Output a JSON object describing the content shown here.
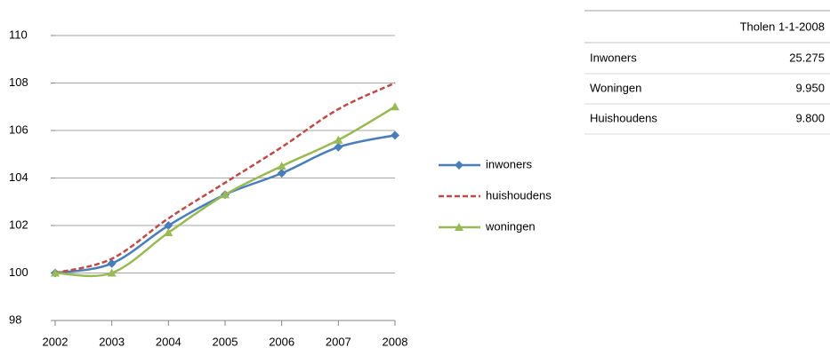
{
  "chart_data": {
    "type": "line",
    "categories": [
      "2002",
      "2003",
      "2004",
      "2005",
      "2006",
      "2007",
      "2008"
    ],
    "series": [
      {
        "name": "inwoners",
        "color": "#4a7ebb",
        "marker": "diamond",
        "dash": false,
        "values": [
          100,
          100.4,
          102.0,
          103.3,
          104.2,
          105.3,
          105.8
        ]
      },
      {
        "name": "huishoudens",
        "color": "#be4b48",
        "marker": "none",
        "dash": true,
        "values": [
          100,
          100.6,
          102.3,
          103.8,
          105.3,
          106.9,
          108.0
        ]
      },
      {
        "name": "woningen",
        "color": "#98b954",
        "marker": "triangle",
        "dash": false,
        "values": [
          100,
          100.0,
          101.7,
          103.3,
          104.5,
          105.6,
          107.0
        ]
      }
    ],
    "ylim": [
      98,
      110
    ],
    "yticks": [
      98,
      100,
      102,
      104,
      106,
      108,
      110
    ],
    "grid": true,
    "legend": "right",
    "smooth": true
  },
  "table": {
    "header": [
      "Tholen 1-1-2008"
    ],
    "rows": [
      [
        "Inwoners",
        "25.275"
      ],
      [
        "Woningen",
        "9.950"
      ],
      [
        "Huishoudens",
        "9.800"
      ]
    ]
  }
}
